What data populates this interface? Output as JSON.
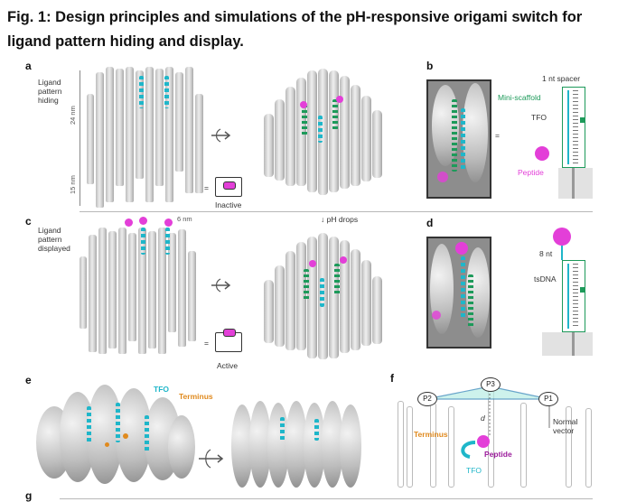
{
  "figure": {
    "title": "Fig. 1: Design principles and simulations of the pH-responsive origami switch for ligand pattern hiding and display."
  },
  "panels": {
    "a": {
      "label": "a",
      "caption": "Ligand pattern hiding",
      "dim_24": "24 nm",
      "dim_15": "15 nm",
      "state": "Inactive"
    },
    "b": {
      "label": "b",
      "spacer": "1 nt spacer",
      "mini": "Mini-scaffold",
      "tfo": "TFO",
      "peptide": "Peptide"
    },
    "transition": {
      "text": "pH drops"
    },
    "c": {
      "label": "c",
      "caption": "Ligand pattern displayed",
      "dim_6": "6 nm",
      "state": "Active"
    },
    "d": {
      "label": "d",
      "nt": "8 nt",
      "tsdna": "tsDNA"
    },
    "e": {
      "label": "e",
      "tfo": "TFO",
      "terminus": "Terminus"
    },
    "f": {
      "label": "f",
      "p1": "P1",
      "p2": "P2",
      "p3": "P3",
      "d": "d",
      "normal": "Normal vector",
      "terminus": "Terminus",
      "peptide": "Peptide",
      "tfo": "TFO"
    },
    "g": {
      "label": "g"
    }
  },
  "colors": {
    "tfo": "#1fb6c9",
    "scaffold": "#1d9a5a",
    "peptide": "#e33fd8",
    "terminus": "#e08a1e",
    "tube": "#d0d0d0"
  }
}
